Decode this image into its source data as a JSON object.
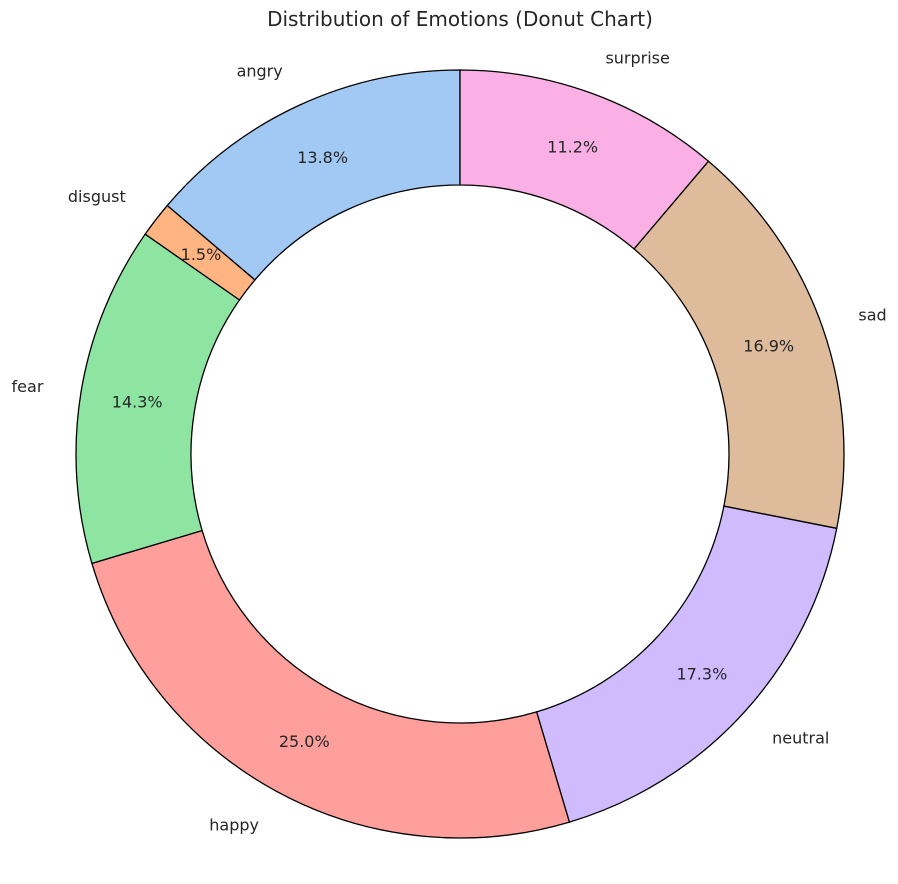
{
  "chart_data": {
    "type": "pie",
    "title": "Distribution of Emotions (Donut Chart)",
    "donut": true,
    "start_angle_deg": 90,
    "direction": "counterclockwise",
    "slices": [
      {
        "label": "angry",
        "value": 13.8,
        "pct_label": "13.8%",
        "color": "#a1c9f4"
      },
      {
        "label": "disgust",
        "value": 1.5,
        "pct_label": "1.5%",
        "color": "#ffb482"
      },
      {
        "label": "fear",
        "value": 14.3,
        "pct_label": "14.3%",
        "color": "#8de5a1"
      },
      {
        "label": "happy",
        "value": 25.0,
        "pct_label": "25.0%",
        "color": "#ff9f9b"
      },
      {
        "label": "neutral",
        "value": 17.3,
        "pct_label": "17.3%",
        "color": "#d0bbff"
      },
      {
        "label": "sad",
        "value": 16.9,
        "pct_label": "16.9%",
        "color": "#debb9b"
      },
      {
        "label": "surprise",
        "value": 11.2,
        "pct_label": "11.2%",
        "color": "#fab0e4"
      }
    ],
    "edge_color": "#000000"
  }
}
